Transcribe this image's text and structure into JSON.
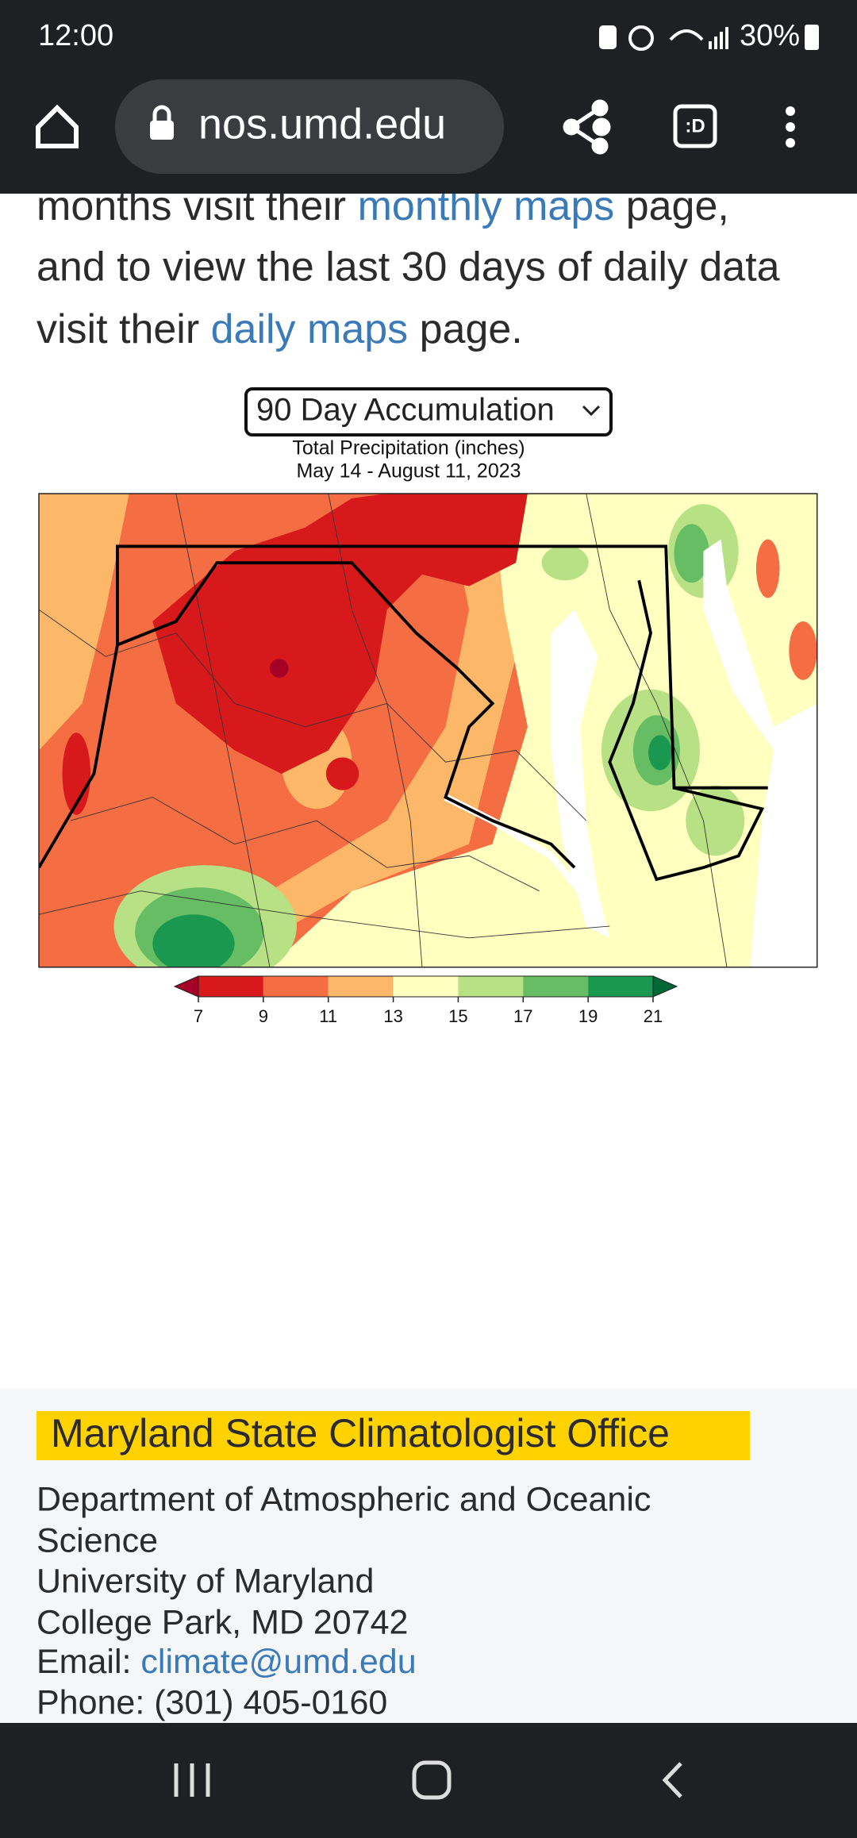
{
  "status_bar": {
    "time": "12:00",
    "battery": "30%"
  },
  "browser": {
    "url": "nos.umd.edu"
  },
  "intro": {
    "line1": [
      "months visit their ",
      "monthly maps",
      " page,"
    ],
    "line2": "and to view the last 30 days of daily data",
    "line3": [
      "visit their ",
      "daily maps",
      " page."
    ]
  },
  "map_panel": {
    "dropdown": "90 Day Accumulation",
    "title": "Total Precipitation (inches)",
    "subtitle": "May 14 - August 11, 2023",
    "colorbar": {
      "ticks": [
        7,
        9,
        11,
        13,
        15,
        17,
        19,
        21
      ],
      "colors": [
        "#a50026",
        "#d7191c",
        "#f46d43",
        "#fdb768",
        "#ffffbf",
        "#b8e186",
        "#66bd63",
        "#1a9850",
        "#006837"
      ]
    }
  },
  "footer": {
    "title": "Maryland State Climatologist Office",
    "department": [
      "Department of Atmospheric and Oceanic",
      "Science"
    ],
    "university": "University of Maryland",
    "address": "College Park, MD 20742",
    "email_label": "Email: ",
    "email": "climate@umd.edu",
    "phone": "Phone: (301) 405-0160"
  }
}
